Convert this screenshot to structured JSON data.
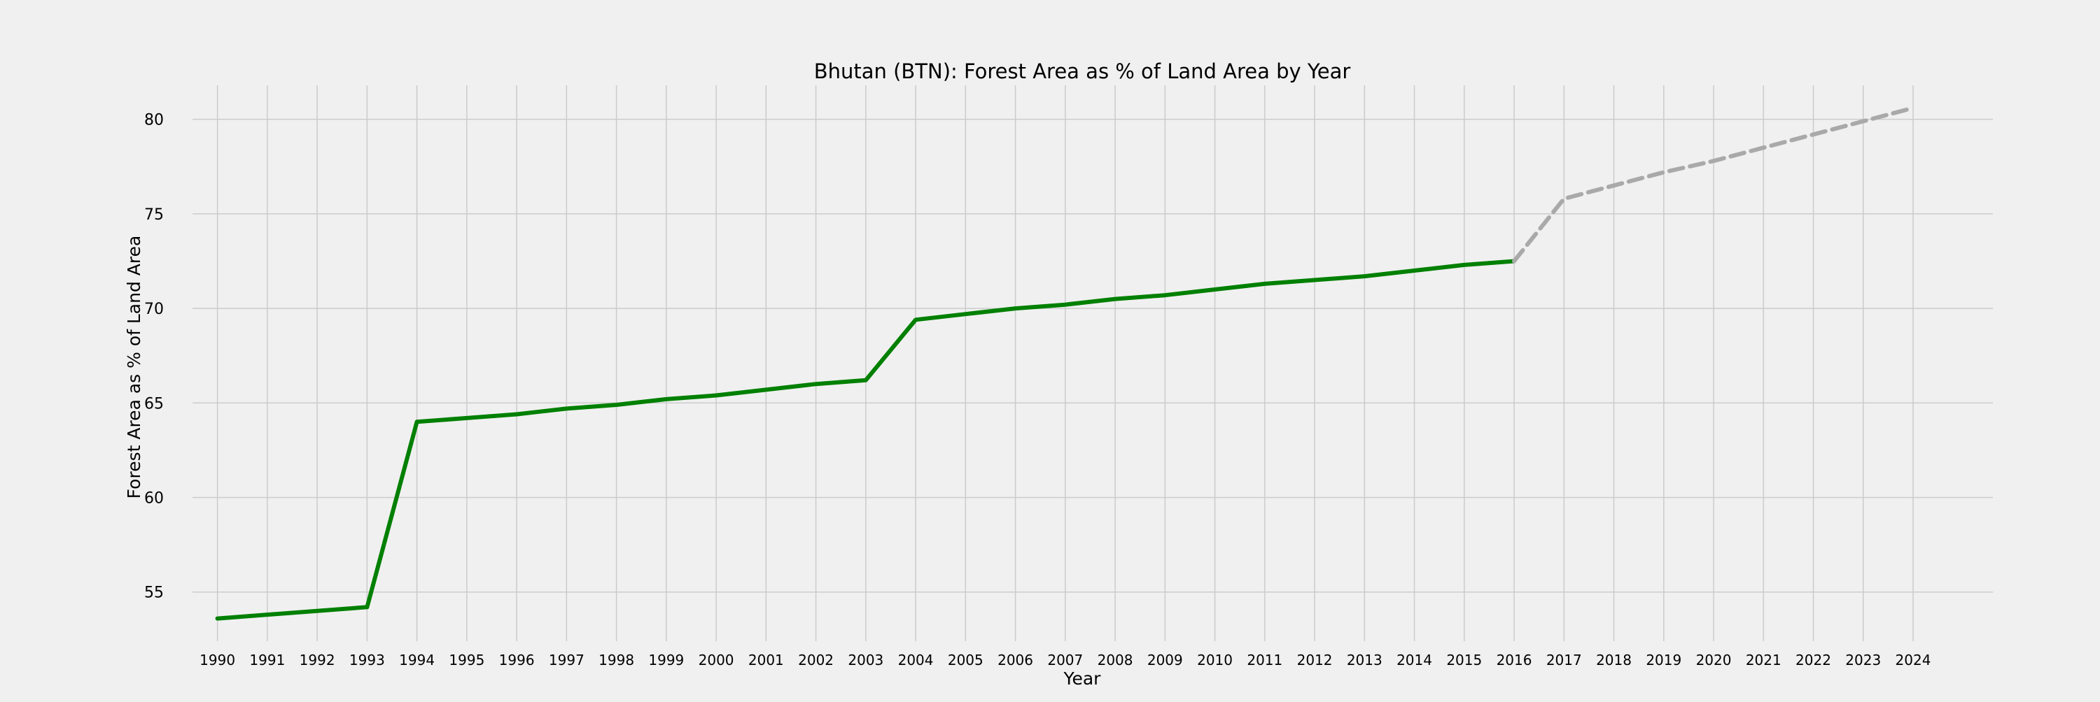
{
  "chart_data": {
    "type": "line",
    "title": "Bhutan (BTN): Forest Area as % of Land Area by Year",
    "xlabel": "Year",
    "ylabel": "Forest Area as % of Land Area",
    "x_ticks": [
      "1990",
      "1991",
      "1992",
      "1993",
      "1994",
      "1995",
      "1996",
      "1997",
      "1998",
      "1999",
      "2000",
      "2001",
      "2002",
      "2003",
      "2004",
      "2005",
      "2006",
      "2007",
      "2008",
      "2009",
      "2010",
      "2011",
      "2012",
      "2013",
      "2014",
      "2015",
      "2016",
      "2017",
      "2018",
      "2019",
      "2020",
      "2021",
      "2022",
      "2023",
      "2024"
    ],
    "y_ticks": [
      55,
      60,
      65,
      70,
      75,
      80
    ],
    "xlim": [
      1989.5,
      2025.6
    ],
    "ylim": [
      52.4,
      81.8
    ],
    "grid": true,
    "legend": "none",
    "series": [
      {
        "style": "solid",
        "color": "#008000",
        "x": [
          1990,
          1991,
          1992,
          1993,
          1994,
          1995,
          1996,
          1997,
          1998,
          1999,
          2000,
          2001,
          2002,
          2003,
          2004,
          2005,
          2006,
          2007,
          2008,
          2009,
          2010,
          2011,
          2012,
          2013,
          2014,
          2015,
          2016
        ],
        "values": [
          53.6,
          53.8,
          54.0,
          54.2,
          64.0,
          64.2,
          64.4,
          64.7,
          64.9,
          65.2,
          65.4,
          65.7,
          66.0,
          66.2,
          69.4,
          69.7,
          70.0,
          70.2,
          70.5,
          70.7,
          71.0,
          71.3,
          71.5,
          71.7,
          72.0,
          72.3,
          72.5
        ]
      },
      {
        "style": "dashed",
        "color": "#a9a9a9",
        "x": [
          2016,
          2017,
          2018,
          2019,
          2020,
          2021,
          2022,
          2023,
          2024
        ],
        "values": [
          72.5,
          75.8,
          76.5,
          77.2,
          77.8,
          78.5,
          79.2,
          79.9,
          80.6
        ]
      }
    ]
  }
}
